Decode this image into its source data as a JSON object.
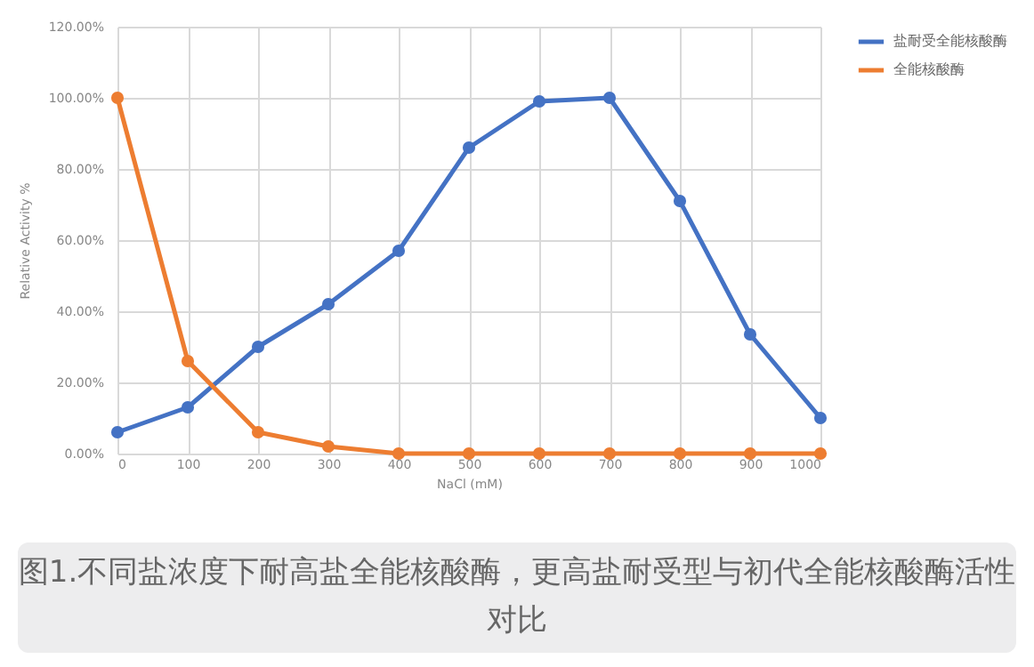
{
  "chart_data": {
    "type": "line",
    "xlabel": "NaCl (mM)",
    "ylabel": "Relative Activity %",
    "x": [
      0,
      100,
      200,
      300,
      400,
      500,
      600,
      700,
      800,
      900,
      1000
    ],
    "series": [
      {
        "name": "盐耐受全能核酸酶",
        "color": "#4472c4",
        "values": [
          6,
          13,
          30,
          42,
          57,
          86,
          99,
          100,
          71,
          33.5,
          10
        ]
      },
      {
        "name": "全能核酸酶",
        "color": "#ed7d31",
        "values": [
          100,
          26,
          6,
          2,
          0,
          0,
          0,
          0,
          0,
          0,
          0
        ]
      }
    ],
    "xlim": [
      0,
      1000
    ],
    "xticks": [
      0,
      100,
      200,
      300,
      400,
      500,
      600,
      700,
      800,
      900,
      1000
    ],
    "ylim": [
      0,
      120
    ],
    "yticks": [
      {
        "value": 0,
        "label": "0.00%"
      },
      {
        "value": 20,
        "label": "20.00%"
      },
      {
        "value": 40,
        "label": "40.00%"
      },
      {
        "value": 60,
        "label": "60.00%"
      },
      {
        "value": 80,
        "label": "80.00%"
      },
      {
        "value": 100,
        "label": "100.00%"
      },
      {
        "value": 120,
        "label": "120.00%"
      }
    ],
    "grid": true,
    "legend": "right",
    "marker": "circle",
    "line_style": "solid",
    "annotations": [
      "图1.不同盐浓度下耐高盐全能核酸酶，更高盐耐受型与初代全能核酸酶活性对比"
    ]
  }
}
